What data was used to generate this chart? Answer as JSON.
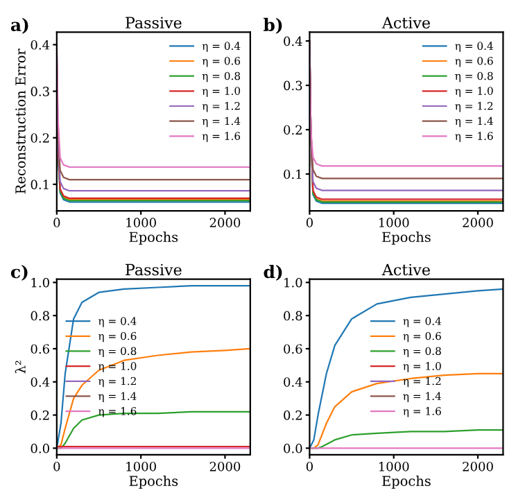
{
  "chart_data": [
    {
      "type": "line",
      "title": "Passive",
      "xlabel": "Epochs",
      "ylabel": "Reconstruction Error",
      "annotations": [
        "a)"
      ],
      "xlim": [
        0,
        2300
      ],
      "xticks": [
        0,
        1000,
        2000
      ],
      "ylim": [
        0.043,
        0.427
      ],
      "yticks": [
        0.1,
        0.2,
        0.3,
        0.4
      ],
      "legend": "top right",
      "grid": false,
      "series": [
        {
          "name": "η = 0.4",
          "color": "#1f77b4",
          "x": [
            15,
            40,
            80,
            150,
            1000,
            2300
          ],
          "values": [
            0.16,
            0.082,
            0.067,
            0.062,
            0.062,
            0.062
          ]
        },
        {
          "name": "η = 0.6",
          "color": "#ff7f0e",
          "x": [
            40,
            80,
            150,
            1000,
            2300
          ],
          "values": [
            0.087,
            0.072,
            0.067,
            0.067,
            0.067
          ]
        },
        {
          "name": "η = 0.8",
          "color": "#2ca02c",
          "x": [
            15,
            40,
            80,
            150,
            1000,
            2300
          ],
          "values": [
            0.165,
            0.085,
            0.07,
            0.065,
            0.065,
            0.065
          ]
        },
        {
          "name": "η = 1.0",
          "color": "#d62728",
          "x": [
            15,
            40,
            80,
            150,
            1000,
            2300
          ],
          "values": [
            0.175,
            0.09,
            0.075,
            0.07,
            0.07,
            0.07
          ]
        },
        {
          "name": "η = 1.2",
          "color": "#9467bd",
          "x": [
            0,
            15,
            40,
            80,
            150,
            1000,
            2300
          ],
          "values": [
            0.39,
            0.19,
            0.106,
            0.091,
            0.086,
            0.086,
            0.086
          ]
        },
        {
          "name": "η = 1.4",
          "color": "#8c564b",
          "x": [
            0,
            15,
            40,
            80,
            150,
            1000,
            2300
          ],
          "values": [
            0.395,
            0.21,
            0.13,
            0.115,
            0.11,
            0.11,
            0.11
          ]
        },
        {
          "name": "η = 1.6",
          "color": "#e377c2",
          "x": [
            0,
            15,
            40,
            80,
            150,
            1000,
            2300
          ],
          "values": [
            0.4,
            0.24,
            0.157,
            0.142,
            0.137,
            0.137,
            0.137
          ]
        }
      ]
    },
    {
      "type": "line",
      "title": "Active",
      "xlabel": "Epochs",
      "annotations": [
        "b)"
      ],
      "xlim": [
        0,
        2300
      ],
      "xticks": [
        0,
        1000,
        2000
      ],
      "ylim": [
        0.017,
        0.42
      ],
      "yticks": [
        0.1,
        0.2,
        0.3,
        0.4
      ],
      "legend": "top right",
      "grid": false,
      "series": [
        {
          "name": "η = 0.4",
          "color": "#1f77b4",
          "x": [
            0,
            15,
            40,
            80,
            150,
            1000,
            2300
          ],
          "values": [
            0.4,
            0.2,
            0.054,
            0.039,
            0.034,
            0.034,
            0.034
          ]
        },
        {
          "name": "η = 0.6",
          "color": "#ff7f0e",
          "x": [
            0,
            15,
            40,
            80,
            150,
            1000,
            2300
          ],
          "values": [
            0.4,
            0.2,
            0.059,
            0.044,
            0.039,
            0.039,
            0.039
          ]
        },
        {
          "name": "η = 0.8",
          "color": "#2ca02c",
          "x": [
            0,
            15,
            40,
            80,
            150,
            1000,
            2300
          ],
          "values": [
            0.4,
            0.2,
            0.057,
            0.042,
            0.037,
            0.037,
            0.037
          ]
        },
        {
          "name": "η = 1.0",
          "color": "#d62728",
          "x": [
            0,
            15,
            40,
            80,
            150,
            1000,
            2300
          ],
          "values": [
            0.4,
            0.2,
            0.063,
            0.048,
            0.043,
            0.043,
            0.043
          ]
        },
        {
          "name": "η = 1.2",
          "color": "#9467bd",
          "x": [
            0,
            15,
            40,
            80,
            150,
            1000,
            2300
          ],
          "values": [
            0.4,
            0.2,
            0.083,
            0.068,
            0.063,
            0.063,
            0.063
          ]
        },
        {
          "name": "η = 1.4",
          "color": "#8c564b",
          "x": [
            0,
            15,
            40,
            80,
            150,
            1000,
            2300
          ],
          "values": [
            0.4,
            0.2,
            0.11,
            0.095,
            0.09,
            0.09,
            0.09
          ]
        },
        {
          "name": "η = 1.6",
          "color": "#e377c2",
          "x": [
            0,
            15,
            40,
            80,
            150,
            1000,
            2300
          ],
          "values": [
            0.4,
            0.2,
            0.138,
            0.123,
            0.118,
            0.118,
            0.118
          ]
        }
      ]
    },
    {
      "type": "line",
      "title": "Passive",
      "xlabel": "Epochs",
      "ylabel": "λ²",
      "annotations": [
        "c)"
      ],
      "xlim": [
        0,
        2300
      ],
      "xticks": [
        0,
        1000,
        2000
      ],
      "ylim": [
        -0.04,
        1.02
      ],
      "yticks": [
        {
          "value": 0,
          "label": "0.0"
        },
        {
          "value": 0.2,
          "label": "0.2"
        },
        {
          "value": 0.4,
          "label": "0.4"
        },
        {
          "value": 0.6,
          "label": "0.6"
        },
        {
          "value": 0.8,
          "label": "0.8"
        },
        {
          "value": 1,
          "label": "1.0"
        }
      ],
      "legend": "left",
      "grid": false,
      "series": [
        {
          "name": "η = 0.4",
          "color": "#1f77b4",
          "x": [
            0,
            50,
            100,
            200,
            300,
            500,
            800,
            1200,
            1600,
            2000,
            2300
          ],
          "values": [
            0,
            0.15,
            0.45,
            0.78,
            0.88,
            0.94,
            0.96,
            0.97,
            0.98,
            0.98,
            0.98
          ]
        },
        {
          "name": "η = 0.6",
          "color": "#ff7f0e",
          "x": [
            0,
            50,
            100,
            200,
            300,
            500,
            800,
            1200,
            1600,
            2000,
            2300
          ],
          "values": [
            0,
            0.02,
            0.12,
            0.3,
            0.38,
            0.47,
            0.53,
            0.56,
            0.58,
            0.59,
            0.6
          ]
        },
        {
          "name": "η = 0.8",
          "color": "#2ca02c",
          "x": [
            0,
            50,
            100,
            200,
            300,
            500,
            800,
            1200,
            1600,
            2000,
            2300
          ],
          "values": [
            0,
            0,
            0.03,
            0.12,
            0.17,
            0.2,
            0.21,
            0.21,
            0.22,
            0.22,
            0.22
          ]
        },
        {
          "name": "η = 1.0",
          "color": "#d62728",
          "x": [
            0,
            2300
          ],
          "values": [
            0.01,
            0.01
          ]
        },
        {
          "name": "η = 1.2",
          "color": "#9467bd"
        },
        {
          "name": "η = 1.4",
          "color": "#8c564b"
        },
        {
          "name": "η = 1.6",
          "color": "#e377c2",
          "x": [
            0,
            2300
          ],
          "values": [
            0,
            0
          ]
        }
      ]
    },
    {
      "type": "line",
      "title": "Active",
      "xlabel": "Epochs",
      "annotations": [
        "d)"
      ],
      "xlim": [
        0,
        2300
      ],
      "xticks": [
        0,
        1000,
        2000
      ],
      "ylim": [
        -0.04,
        1.02
      ],
      "yticks": [
        {
          "value": 0,
          "label": "0.0"
        },
        {
          "value": 0.2,
          "label": "0.2"
        },
        {
          "value": 0.4,
          "label": "0.4"
        },
        {
          "value": 0.6,
          "label": "0.6"
        },
        {
          "value": 0.8,
          "label": "0.8"
        },
        {
          "value": 1,
          "label": "1.0"
        }
      ],
      "legend": "center",
      "grid": false,
      "series": [
        {
          "name": "η = 0.4",
          "color": "#1f77b4",
          "x": [
            0,
            50,
            100,
            200,
            300,
            500,
            800,
            1200,
            1600,
            2000,
            2300
          ],
          "values": [
            0,
            0.05,
            0.2,
            0.45,
            0.62,
            0.78,
            0.87,
            0.91,
            0.93,
            0.95,
            0.96
          ]
        },
        {
          "name": "η = 0.6",
          "color": "#ff7f0e",
          "x": [
            0,
            50,
            100,
            200,
            300,
            500,
            800,
            1200,
            1600,
            2000,
            2300
          ],
          "values": [
            0,
            0,
            0.02,
            0.15,
            0.25,
            0.34,
            0.39,
            0.42,
            0.44,
            0.45,
            0.45
          ]
        },
        {
          "name": "η = 0.8",
          "color": "#2ca02c",
          "x": [
            0,
            50,
            100,
            150,
            300,
            500,
            800,
            1200,
            1600,
            2000,
            2300
          ],
          "values": [
            0,
            0,
            0,
            0.01,
            0.05,
            0.08,
            0.09,
            0.1,
            0.1,
            0.11,
            0.11
          ]
        },
        {
          "name": "η = 1.0",
          "color": "#d62728"
        },
        {
          "name": "η = 1.2",
          "color": "#9467bd"
        },
        {
          "name": "η = 1.4",
          "color": "#8c564b"
        },
        {
          "name": "η = 1.6",
          "color": "#e377c2",
          "x": [
            0,
            2300
          ],
          "values": [
            0,
            0
          ]
        }
      ]
    }
  ]
}
